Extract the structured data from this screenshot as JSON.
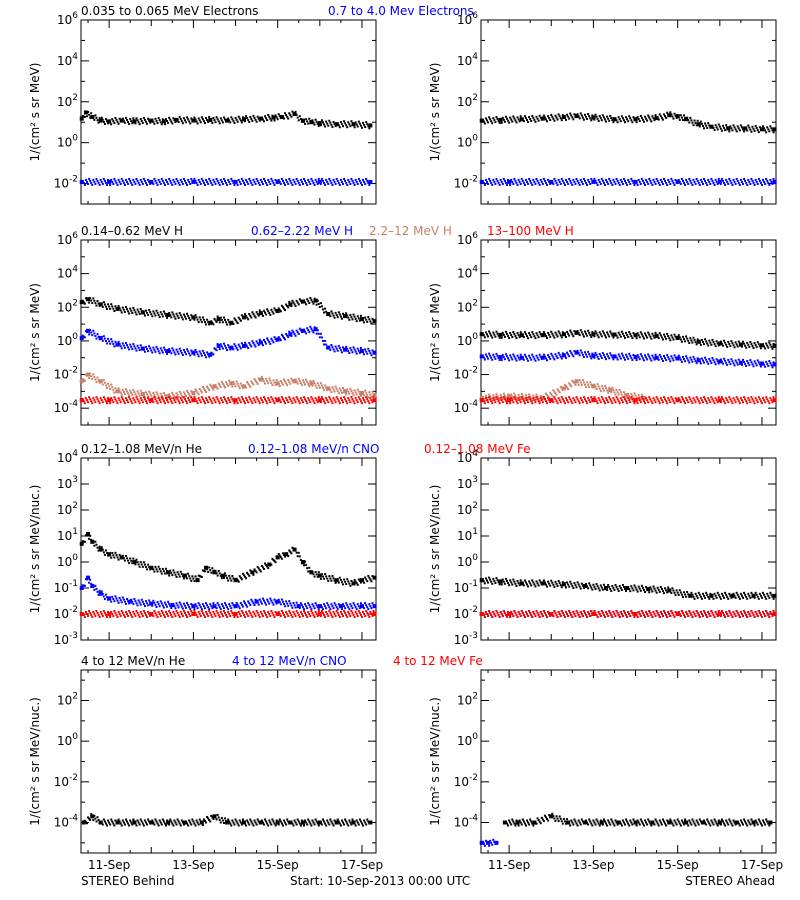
{
  "footer": {
    "left": "STEREO Behind",
    "center": "Start: 10-Sep-2013 00:00 UTC",
    "right": "STEREO Ahead"
  },
  "x_axis": {
    "range": [
      10.333,
      17.333
    ],
    "ticks": [
      11,
      13,
      15,
      17
    ],
    "tick_labels": [
      "11-Sep",
      "13-Sep",
      "15-Sep",
      "17-Sep"
    ]
  },
  "rows": [
    {
      "legend": [
        {
          "text": "0.035 to 0.065 MeV Electrons",
          "color": "#000000"
        },
        {
          "text": "0.7 to 4.0 Mev Electrons",
          "color": "#0000ff"
        }
      ],
      "ylabel": "1/(cm² s sr MeV)",
      "ylim_log10": [
        -3,
        6
      ],
      "yticks": [
        "10^6",
        "10^4",
        "10^2",
        "10^0",
        "10^-2"
      ],
      "ytick_exps": [
        6,
        4,
        2,
        0,
        -2
      ]
    },
    {
      "legend": [
        {
          "text": "0.14–0.62 MeV H",
          "color": "#000000"
        },
        {
          "text": "0.62–2.22 MeV H",
          "color": "#0000ff"
        },
        {
          "text": "2.2–12 MeV H",
          "color": "#c8806a"
        },
        {
          "text": "13–100 MeV H",
          "color": "#ff0000"
        }
      ],
      "ylabel": "1/(cm² s sr MeV)",
      "ylim_log10": [
        -5,
        6
      ],
      "yticks": [
        "10^6",
        "10^4",
        "10^2",
        "10^0",
        "10^-2",
        "10^-4"
      ],
      "ytick_exps": [
        6,
        4,
        2,
        0,
        -2,
        -4
      ]
    },
    {
      "legend": [
        {
          "text": "0.12–1.08 MeV/n He",
          "color": "#000000"
        },
        {
          "text": "0.12–1.08 MeV/n CNO",
          "color": "#0000ff"
        },
        {
          "text": "0.12–1.08 MeV Fe",
          "color": "#ff0000"
        }
      ],
      "ylabel": "1/(cm² s sr MeV/nuc.)",
      "ylim_log10": [
        -3,
        4
      ],
      "yticks": [
        "10^4",
        "10^3",
        "10^2",
        "10^1",
        "10^0",
        "10^-1",
        "10^-2",
        "10^-3"
      ],
      "ytick_exps": [
        4,
        3,
        2,
        1,
        0,
        -1,
        -2,
        -3
      ]
    },
    {
      "legend": [
        {
          "text": "4 to 12 MeV/n He",
          "color": "#000000"
        },
        {
          "text": "4 to 12 MeV/n CNO",
          "color": "#0000ff"
        },
        {
          "text": "4 to 12 MeV Fe",
          "color": "#ff0000"
        }
      ],
      "ylabel": "1/(cm² s sr MeV/nuc.)",
      "ylim_log10": [
        -5.5,
        3.5
      ],
      "yticks": [
        "10^2",
        "10^0",
        "10^-2",
        "10^-4"
      ],
      "ytick_exps": [
        2,
        0,
        -2,
        -4
      ]
    }
  ],
  "chart_data": [
    {
      "type": "scatter",
      "panel": "Behind / Electrons",
      "series": [
        {
          "name": "0.035 to 0.065 MeV Electrons",
          "color": "#000000",
          "x": [
            10.35,
            10.45,
            10.6,
            10.8,
            11.0,
            11.3,
            11.6,
            12.0,
            12.3,
            12.6,
            13.0,
            13.4,
            13.8,
            14.2,
            14.6,
            14.9,
            15.1,
            15.4,
            15.6,
            15.8,
            16.0,
            16.4,
            16.8,
            17.2
          ],
          "y": [
            15,
            30,
            18,
            12,
            11,
            12,
            11,
            12,
            11,
            13,
            12,
            13,
            12,
            14,
            15,
            17,
            18,
            25,
            12,
            10,
            9,
            8,
            8,
            7
          ]
        },
        {
          "name": "0.7 to 4.0 Mev Electrons",
          "color": "#0000ff",
          "x": [
            10.35,
            11.0,
            12.0,
            13.0,
            14.0,
            15.0,
            16.0,
            17.2
          ],
          "y": [
            0.012,
            0.012,
            0.012,
            0.012,
            0.012,
            0.012,
            0.012,
            0.012
          ]
        }
      ]
    },
    {
      "type": "scatter",
      "panel": "Ahead / Electrons",
      "series": [
        {
          "name": "0.035 to 0.065 MeV Electrons",
          "color": "#000000",
          "x": [
            10.35,
            10.8,
            11.3,
            11.8,
            12.3,
            12.6,
            13.0,
            13.5,
            14.0,
            14.5,
            14.8,
            15.0,
            15.2,
            15.5,
            15.8,
            16.2,
            16.6,
            17.0,
            17.3
          ],
          "y": [
            12,
            13,
            14,
            15,
            18,
            20,
            17,
            14,
            14,
            16,
            22,
            20,
            14,
            8,
            6,
            5,
            5,
            4.5,
            4.5
          ]
        },
        {
          "name": "0.7 to 4.0 Mev Electrons",
          "color": "#0000ff",
          "x": [
            10.35,
            11.0,
            12.0,
            13.0,
            14.0,
            15.0,
            16.0,
            17.3
          ],
          "y": [
            0.012,
            0.012,
            0.012,
            0.012,
            0.012,
            0.012,
            0.012,
            0.012
          ]
        }
      ]
    },
    {
      "type": "scatter",
      "panel": "Behind / H",
      "series": [
        {
          "name": "0.14–0.62 MeV H",
          "color": "#000000",
          "x": [
            10.35,
            10.5,
            10.8,
            11.2,
            11.8,
            12.4,
            13.0,
            13.4,
            13.6,
            13.9,
            14.2,
            14.6,
            15.0,
            15.3,
            15.6,
            15.9,
            16.2,
            16.6,
            17.0,
            17.3
          ],
          "y": [
            200,
            300,
            150,
            80,
            50,
            35,
            25,
            12,
            20,
            12,
            25,
            45,
            60,
            150,
            220,
            250,
            40,
            30,
            20,
            15
          ]
        },
        {
          "name": "0.62–2.22 MeV H",
          "color": "#0000ff",
          "x": [
            10.35,
            10.5,
            10.8,
            11.2,
            11.8,
            12.4,
            13.0,
            13.4,
            13.6,
            13.9,
            14.2,
            14.6,
            15.0,
            15.3,
            15.6,
            15.9,
            16.2,
            16.6,
            17.0,
            17.3
          ],
          "y": [
            1.5,
            4,
            1.5,
            0.6,
            0.35,
            0.25,
            0.2,
            0.15,
            0.5,
            0.4,
            0.5,
            0.8,
            1.2,
            2.5,
            4,
            5,
            0.4,
            0.3,
            0.25,
            0.2
          ]
        },
        {
          "name": "2.2–12 MeV H",
          "color": "#c8806a",
          "x": [
            10.35,
            10.5,
            10.8,
            11.2,
            11.8,
            12.4,
            13.0,
            13.5,
            13.9,
            14.2,
            14.6,
            15.0,
            15.4,
            15.8,
            16.2,
            16.6,
            17.0,
            17.3
          ],
          "y": [
            0.004,
            0.01,
            0.004,
            0.001,
            0.0007,
            0.0005,
            0.0008,
            0.002,
            0.003,
            0.002,
            0.005,
            0.003,
            0.004,
            0.003,
            0.0015,
            0.001,
            0.0008,
            0.0006
          ]
        },
        {
          "name": "13–100 MeV H",
          "color": "#ff0000",
          "x": [
            10.35,
            11.0,
            12.0,
            13.0,
            14.0,
            15.0,
            16.0,
            17.3
          ],
          "y": [
            0.0003,
            0.0003,
            0.0003,
            0.0003,
            0.0003,
            0.0003,
            0.0003,
            0.0003
          ]
        }
      ]
    },
    {
      "type": "scatter",
      "panel": "Ahead / H",
      "series": [
        {
          "name": "0.14–0.62 MeV H",
          "color": "#000000",
          "x": [
            10.35,
            10.8,
            11.3,
            11.8,
            12.3,
            12.6,
            13.0,
            13.5,
            14.0,
            14.5,
            15.0,
            15.5,
            16.0,
            16.5,
            17.0,
            17.3
          ],
          "y": [
            2.5,
            2.3,
            2.2,
            2.2,
            2.5,
            3,
            2.5,
            2.4,
            2.2,
            2,
            1.5,
            0.9,
            0.7,
            0.6,
            0.55,
            0.5
          ]
        },
        {
          "name": "0.62–2.22 MeV H",
          "color": "#0000ff",
          "x": [
            10.35,
            10.8,
            11.3,
            11.8,
            12.3,
            12.6,
            13.0,
            13.5,
            14.0,
            14.5,
            15.0,
            15.5,
            16.0,
            16.5,
            17.0,
            17.3
          ],
          "y": [
            0.12,
            0.11,
            0.1,
            0.1,
            0.14,
            0.2,
            0.13,
            0.12,
            0.11,
            0.1,
            0.09,
            0.07,
            0.06,
            0.05,
            0.045,
            0.04
          ]
        },
        {
          "name": "2.2–12 MeV H",
          "color": "#c8806a",
          "x": [
            10.35,
            11.0,
            11.8,
            12.3,
            12.6,
            13.0,
            13.4,
            13.8,
            14.2
          ],
          "y": [
            0.0004,
            0.0005,
            0.0004,
            0.0015,
            0.004,
            0.002,
            0.0012,
            0.0006,
            0.0004
          ]
        },
        {
          "name": "13–100 MeV H",
          "color": "#ff0000",
          "x": [
            10.35,
            11.0,
            12.0,
            13.0,
            14.0,
            15.0,
            16.0,
            17.3
          ],
          "y": [
            0.0003,
            0.0003,
            0.0003,
            0.0003,
            0.0003,
            0.0003,
            0.0003,
            0.0003
          ]
        }
      ]
    },
    {
      "type": "scatter",
      "panel": "Behind / Low-energy ions",
      "series": [
        {
          "name": "0.12–1.08 MeV/n He",
          "color": "#000000",
          "x": [
            10.35,
            10.5,
            10.6,
            10.8,
            11.0,
            11.3,
            11.6,
            12.0,
            12.4,
            12.8,
            13.1,
            13.3,
            13.5,
            13.7,
            14.0,
            14.4,
            14.8,
            15.0,
            15.2,
            15.4,
            15.6,
            15.8,
            16.0,
            16.4,
            16.8,
            17.0,
            17.3
          ],
          "y": [
            5,
            12,
            6,
            3,
            2,
            1.5,
            1,
            0.6,
            0.4,
            0.3,
            0.2,
            0.6,
            0.4,
            0.3,
            0.2,
            0.4,
            0.8,
            1.5,
            2,
            3,
            1,
            0.4,
            0.3,
            0.2,
            0.15,
            0.2,
            0.25
          ]
        },
        {
          "name": "0.12–1.08 MeV/n CNO",
          "color": "#0000ff",
          "x": [
            10.35,
            10.5,
            10.6,
            10.8,
            11.0,
            11.5,
            12.0,
            12.5,
            13.0,
            13.5,
            14.0,
            14.5,
            15.0,
            15.5,
            16.0,
            16.5,
            17.0,
            17.3
          ],
          "y": [
            0.1,
            0.25,
            0.12,
            0.06,
            0.04,
            0.03,
            0.025,
            0.022,
            0.02,
            0.02,
            0.02,
            0.03,
            0.03,
            0.02,
            0.02,
            0.02,
            0.02,
            0.02
          ]
        },
        {
          "name": "0.12–1.08 MeV Fe",
          "color": "#ff0000",
          "x": [
            10.35,
            11.0,
            12.0,
            13.0,
            14.0,
            15.0,
            16.0,
            17.3
          ],
          "y": [
            0.01,
            0.01,
            0.01,
            0.01,
            0.01,
            0.01,
            0.01,
            0.01
          ]
        }
      ]
    },
    {
      "type": "scatter",
      "panel": "Ahead / Low-energy ions",
      "series": [
        {
          "name": "0.12–1.08 MeV/n He",
          "color": "#000000",
          "x": [
            10.35,
            10.8,
            11.3,
            11.8,
            12.3,
            12.8,
            13.3,
            13.8,
            14.3,
            14.8,
            15.3,
            15.8,
            16.3,
            16.8,
            17.3
          ],
          "y": [
            0.2,
            0.18,
            0.15,
            0.15,
            0.14,
            0.12,
            0.1,
            0.1,
            0.09,
            0.08,
            0.05,
            0.05,
            0.05,
            0.05,
            0.05
          ]
        },
        {
          "name": "0.12–1.08 MeV/n CNO",
          "color": "#0000ff",
          "x": [
            10.35,
            11.0,
            12.0,
            13.0,
            14.0,
            15.0,
            16.0,
            17.3
          ],
          "y": [
            0.01,
            0.01,
            0.01,
            0.01,
            0.01,
            0.01,
            0.01,
            0.01
          ]
        },
        {
          "name": "0.12–1.08 MeV Fe",
          "color": "#ff0000",
          "x": [
            10.35,
            11.0,
            12.0,
            13.0,
            14.0,
            15.0,
            16.0,
            17.3
          ],
          "y": [
            0.01,
            0.01,
            0.01,
            0.01,
            0.01,
            0.01,
            0.01,
            0.01
          ]
        }
      ]
    },
    {
      "type": "scatter",
      "panel": "Behind / High-energy ions",
      "series": [
        {
          "name": "4 to 12 MeV/n He",
          "color": "#000000",
          "x": [
            10.4,
            10.6,
            10.8,
            11.2,
            11.6,
            12.0,
            12.4,
            12.8,
            13.2,
            13.5,
            13.8,
            14.2,
            14.6,
            15.0,
            15.3,
            15.6,
            16.0,
            16.4,
            16.8,
            17.2
          ],
          "y": [
            0.0001,
            0.0002,
            0.0001,
            0.0001,
            0.0001,
            0.0001,
            0.0001,
            0.0001,
            0.0001,
            0.0002,
            0.0001,
            0.0001,
            0.0001,
            0.0001,
            0.0001,
            0.0001,
            0.0001,
            0.0001,
            0.0001,
            0.0001
          ]
        }
      ]
    },
    {
      "type": "scatter",
      "panel": "Ahead / High-energy ions",
      "series": [
        {
          "name": "4 to 12 MeV/n He",
          "color": "#000000",
          "x": [
            10.9,
            11.2,
            11.6,
            12.0,
            12.4,
            12.8,
            13.2,
            13.6,
            14.0,
            14.4,
            14.8,
            15.2,
            15.6,
            16.0,
            16.4,
            16.8,
            17.2
          ],
          "y": [
            0.0001,
            0.0001,
            0.0001,
            0.0002,
            0.0001,
            0.0001,
            0.0001,
            0.0001,
            0.0001,
            0.0001,
            0.0001,
            0.0001,
            0.0001,
            0.0001,
            0.0001,
            0.0001,
            0.0001
          ]
        },
        {
          "name": "4 to 12 MeV/n CNO",
          "color": "#0000ff",
          "x": [
            10.35,
            10.5,
            10.7
          ],
          "y": [
            1e-05,
            1e-05,
            1e-05
          ]
        }
      ]
    }
  ]
}
